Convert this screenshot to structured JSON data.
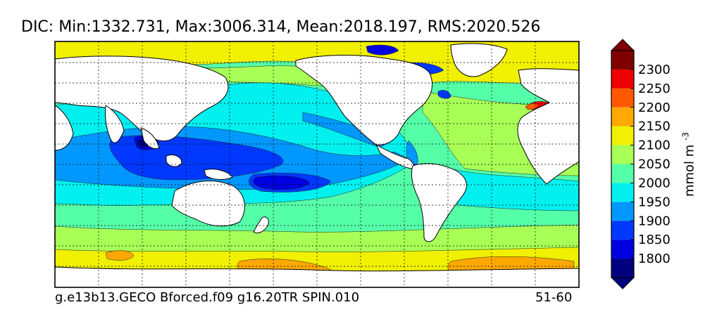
{
  "chart_data": {
    "type": "contour-map",
    "title": "DIC: Min:1332.731, Max:3006.314, Mean:2018.197, RMS:2020.526",
    "variable": "DIC",
    "stats": {
      "min": 1332.731,
      "max": 3006.314,
      "mean": 2018.197,
      "rms": 2020.526
    },
    "run_label": "g.e13b13.GECO Bforced.f09 g16.20TR SPIN.010",
    "period_label": "51-60",
    "colorbar": {
      "units_label": "mmol m",
      "units_exponent": "-3",
      "levels": [
        1750,
        1800,
        1850,
        1900,
        1950,
        2000,
        2050,
        2100,
        2150,
        2200,
        2250,
        2300,
        2350
      ],
      "tick_labels": [
        "1800",
        "1850",
        "1900",
        "1950",
        "2000",
        "2050",
        "2100",
        "2150",
        "2200",
        "2250",
        "2300"
      ],
      "tick_values": [
        1800,
        1850,
        1900,
        1950,
        2000,
        2050,
        2100,
        2150,
        2200,
        2250,
        2300
      ],
      "colors": [
        "#00007f",
        "#0000e0",
        "#0038ff",
        "#0098ff",
        "#00f0f0",
        "#55ffa8",
        "#a8ff55",
        "#f0f000",
        "#ffa800",
        "#ff5800",
        "#f00000",
        "#7f0000"
      ],
      "under_color": "#00007f",
      "over_color": "#7f0000",
      "extend": "both"
    },
    "map": {
      "projection": "equirectangular, Pacific-centered",
      "gridlines": "dashed",
      "land_color": "#ffffff"
    }
  }
}
